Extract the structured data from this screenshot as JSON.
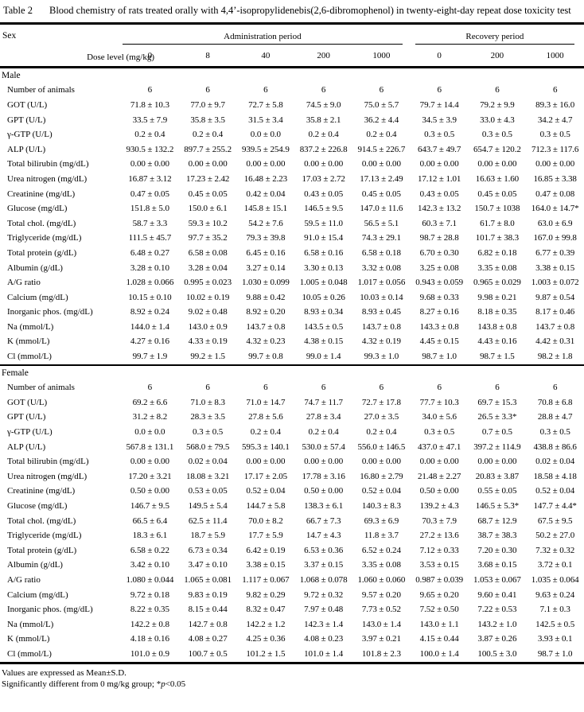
{
  "title": {
    "label": "Table 2",
    "text": "Blood chemistry of rats treated orally with 4,4’-isopropylidenebis(2,6-dibromophenol) in twenty-eight-day repeat dose toxicity test"
  },
  "table": {
    "header": {
      "sex_label": "Sex",
      "dose_level_label": "Dose level (mg/kg)",
      "administration_label": "Administration period",
      "recovery_label": "Recovery period",
      "doses": [
        "0",
        "8",
        "40",
        "200",
        "1000",
        "0",
        "200",
        "1000"
      ]
    },
    "sections": [
      {
        "name": "Male",
        "rows": [
          {
            "label": "Number of animals",
            "values": [
              "6",
              "6",
              "6",
              "6",
              "6",
              "6",
              "6",
              "6"
            ]
          },
          {
            "label": "GOT (U/L)",
            "values": [
              "71.8 ± 10.3",
              "77.0 ± 9.7",
              "72.7 ± 5.8",
              "74.5 ± 9.0",
              "75.0 ± 5.7",
              "79.7 ± 14.4",
              "79.2 ± 9.9",
              "89.3 ± 16.0"
            ]
          },
          {
            "label": "GPT (U/L)",
            "values": [
              "33.5 ± 7.9",
              "35.8 ± 3.5",
              "31.5 ± 3.4",
              "35.8 ± 2.1",
              "36.2 ± 4.4",
              "34.5 ± 3.9",
              "33.0 ± 4.3",
              "34.2 ± 4.7"
            ]
          },
          {
            "label": "γ-GTP (U/L)",
            "values": [
              "0.2 ± 0.4",
              "0.2 ± 0.4",
              "0.0 ± 0.0",
              "0.2 ± 0.4",
              "0.2 ± 0.4",
              "0.3 ± 0.5",
              "0.3 ± 0.5",
              "0.3 ± 0.5"
            ]
          },
          {
            "label": "ALP (U/L)",
            "values": [
              "930.5 ± 132.2",
              "897.7 ± 255.2",
              "939.5 ± 254.9",
              "837.2 ± 226.8",
              "914.5 ± 226.7",
              "643.7 ± 49.7",
              "654.7 ± 120.2",
              "712.3 ± 117.6"
            ]
          },
          {
            "label": "Total bilirubin (mg/dL)",
            "values": [
              "0.00 ± 0.00",
              "0.00 ± 0.00",
              "0.00 ± 0.00",
              "0.00 ± 0.00",
              "0.00 ± 0.00",
              "0.00 ± 0.00",
              "0.00 ± 0.00",
              "0.00 ± 0.00"
            ]
          },
          {
            "label": "Urea nitrogen (mg/dL)",
            "values": [
              "16.87 ± 3.12",
              "17.23 ± 2.42",
              "16.48 ± 2.23",
              "17.03 ± 2.72",
              "17.13 ± 2.49",
              "17.12 ± 1.01",
              "16.63 ± 1.60",
              "16.85 ± 3.38"
            ]
          },
          {
            "label": "Creatinine (mg/dL)",
            "values": [
              "0.47 ± 0.05",
              "0.45 ± 0.05",
              "0.42 ± 0.04",
              "0.43 ± 0.05",
              "0.45 ± 0.05",
              "0.43 ± 0.05",
              "0.45 ± 0.05",
              "0.47 ± 0.08"
            ]
          },
          {
            "label": "Glucose (mg/dL)",
            "values": [
              "151.8 ± 5.0",
              "150.0 ± 6.1",
              "145.8 ± 15.1",
              "146.5 ± 9.5",
              "147.0 ± 11.6",
              "142.3 ± 13.2",
              "150.7 ± 1038",
              "164.0 ± 14.7*"
            ]
          },
          {
            "label": "Total chol. (mg/dL)",
            "values": [
              "58.7 ± 3.3",
              "59.3 ± 10.2",
              "54.2 ± 7.6",
              "59.5 ± 11.0",
              "56.5 ± 5.1",
              "60.3 ± 7.1",
              "61.7 ± 8.0",
              "63.0 ± 6.9"
            ]
          },
          {
            "label": "Triglyceride (mg/dL)",
            "values": [
              "111.5 ± 45.7",
              "97.7 ± 35.2",
              "79.3 ± 39.8",
              "91.0 ± 15.4",
              "74.3 ± 29.1",
              "98.7 ± 28.8",
              "101.7 ± 38.3",
              "167.0 ± 99.8"
            ]
          },
          {
            "label": "Total protein (g/dL)",
            "values": [
              "6.48 ± 0.27",
              "6.58 ± 0.08",
              "6.45 ± 0.16",
              "6.58 ± 0.16",
              "6.58 ± 0.18",
              "6.70 ± 0.30",
              "6.82 ± 0.18",
              "6.77 ± 0.39"
            ]
          },
          {
            "label": "Albumin (g/dL)",
            "values": [
              "3.28 ± 0.10",
              "3.28 ± 0.04",
              "3.27 ± 0.14",
              "3.30 ± 0.13",
              "3.32 ± 0.08",
              "3.25 ± 0.08",
              "3.35 ± 0.08",
              "3.38 ± 0.15"
            ]
          },
          {
            "label": "A/G ratio",
            "values": [
              "1.028 ± 0.066",
              "0.995 ± 0.023",
              "1.030 ± 0.099",
              "1.005 ± 0.048",
              "1.017 ± 0.056",
              "0.943 ± 0.059",
              "0.965 ± 0.029",
              "1.003 ± 0.072"
            ]
          },
          {
            "label": "Calcium (mg/dL)",
            "values": [
              "10.15 ± 0.10",
              "10.02 ± 0.19",
              "9.88 ± 0.42",
              "10.05 ± 0.26",
              "10.03 ± 0.14",
              "9.68 ± 0.33",
              "9.98 ± 0.21",
              "9.87 ± 0.54"
            ]
          },
          {
            "label": "Inorganic phos. (mg/dL)",
            "values": [
              "8.92 ± 0.24",
              "9.02 ± 0.48",
              "8.92 ± 0.20",
              "8.93 ± 0.34",
              "8.93 ± 0.45",
              "8.27 ± 0.16",
              "8.18 ± 0.35",
              "8.17 ± 0.46"
            ]
          },
          {
            "label": "Na (mmol/L)",
            "values": [
              "144.0 ± 1.4",
              "143.0 ± 0.9",
              "143.7 ± 0.8",
              "143.5 ± 0.5",
              "143.7 ± 0.8",
              "143.3 ± 0.8",
              "143.8 ± 0.8",
              "143.7 ± 0.8"
            ]
          },
          {
            "label": "K (mmol/L)",
            "values": [
              "4.27 ± 0.16",
              "4.33 ± 0.19",
              "4.32 ± 0.23",
              "4.38 ± 0.15",
              "4.32 ± 0.19",
              "4.45 ± 0.15",
              "4.43 ± 0.16",
              "4.42 ± 0.31"
            ]
          },
          {
            "label": "Cl (mmol/L)",
            "values": [
              "99.7 ± 1.9",
              "99.2 ± 1.5",
              "99.7 ± 0.8",
              "99.0 ± 1.4",
              "99.3 ± 1.0",
              "98.7 ± 1.0",
              "98.7 ± 1.5",
              "98.2 ± 1.8"
            ]
          }
        ]
      },
      {
        "name": "Female",
        "rows": [
          {
            "label": "Number of animals",
            "values": [
              "6",
              "6",
              "6",
              "6",
              "6",
              "6",
              "6",
              "6"
            ]
          },
          {
            "label": "GOT (U/L)",
            "values": [
              "69.2 ± 6.6",
              "71.0 ± 8.3",
              "71.0 ± 14.7",
              "74.7 ± 11.7",
              "72.7 ± 17.8",
              "77.7 ± 10.3",
              "69.7 ± 15.3",
              "70.8 ± 6.8"
            ]
          },
          {
            "label": "GPT (U/L)",
            "values": [
              "31.2 ± 8.2",
              "28.3 ± 3.5",
              "27.8 ± 5.6",
              "27.8 ± 3.4",
              "27.0 ± 3.5",
              "34.0 ± 5.6",
              "26.5 ± 3.3*",
              "28.8 ± 4.7"
            ]
          },
          {
            "label": "γ-GTP (U/L)",
            "values": [
              "0.0 ± 0.0",
              "0.3 ± 0.5",
              "0.2 ± 0.4",
              "0.2 ± 0.4",
              "0.2 ± 0.4",
              "0.3 ± 0.5",
              "0.7 ± 0.5",
              "0.3 ± 0.5"
            ]
          },
          {
            "label": "ALP (U/L)",
            "values": [
              "567.8 ± 131.1",
              "568.0 ± 79.5",
              "595.3 ± 140.1",
              "530.0 ± 57.4",
              "556.0 ± 146.5",
              "437.0 ± 47.1",
              "397.2 ± 114.9",
              "438.8 ± 86.6"
            ]
          },
          {
            "label": "Total bilirubin (mg/dL)",
            "values": [
              "0.00 ± 0.00",
              "0.02 ± 0.04",
              "0.00 ± 0.00",
              "0.00 ± 0.00",
              "0.00 ± 0.00",
              "0.00 ± 0.00",
              "0.00 ± 0.00",
              "0.02 ± 0.04"
            ]
          },
          {
            "label": "Urea nitrogen (mg/dL)",
            "values": [
              "17.20 ± 3.21",
              "18.08 ± 3.21",
              "17.17 ± 2.05",
              "17.78 ± 3.16",
              "16.80 ± 2.79",
              "21.48 ± 2.27",
              "20.83 ± 3.87",
              "18.58 ± 4.18"
            ]
          },
          {
            "label": "Creatinine (mg/dL)",
            "values": [
              "0.50 ± 0.00",
              "0.53 ± 0.05",
              "0.52 ± 0.04",
              "0.50 ± 0.00",
              "0.52 ± 0.04",
              "0.50 ± 0.00",
              "0.55 ± 0.05",
              "0.52 ± 0.04"
            ]
          },
          {
            "label": "Glucose (mg/dL)",
            "values": [
              "146.7 ± 9.5",
              "149.5 ± 5.4",
              "144.7 ± 5.8",
              "138.3 ± 6.1",
              "140.3 ± 8.3",
              "139.2 ± 4.3",
              "146.5 ± 5.3*",
              "147.7 ± 4.4*"
            ]
          },
          {
            "label": "Total chol. (mg/dL)",
            "values": [
              "66.5 ± 6.4",
              "62.5 ± 11.4",
              "70.0 ± 8.2",
              "66.7 ± 7.3",
              "69.3 ± 6.9",
              "70.3 ± 7.9",
              "68.7 ± 12.9",
              "67.5 ± 9.5"
            ]
          },
          {
            "label": "Triglyceride (mg/dL)",
            "values": [
              "18.3 ± 6.1",
              "18.7 ± 5.9",
              "17.7 ± 5.9",
              "14.7 ± 4.3",
              "11.8 ± 3.7",
              "27.2 ± 13.6",
              "38.7 ± 38.3",
              "50.2 ± 27.0"
            ]
          },
          {
            "label": "Total protein (g/dL)",
            "values": [
              "6.58 ± 0.22",
              "6.73 ± 0.34",
              "6.42 ± 0.19",
              "6.53 ± 0.36",
              "6.52 ± 0.24",
              "7.12 ± 0.33",
              "7.20 ± 0.30",
              "7.32 ± 0.32"
            ]
          },
          {
            "label": "Albumin (g/dL)",
            "values": [
              "3.42 ± 0.10",
              "3.47 ± 0.10",
              "3.38 ± 0.15",
              "3.37 ± 0.15",
              "3.35 ± 0.08",
              "3.53 ± 0.15",
              "3.68 ± 0.15",
              "3.72 ± 0.1"
            ]
          },
          {
            "label": "A/G ratio",
            "values": [
              "1.080 ± 0.044",
              "1.065 ± 0.081",
              "1.117 ± 0.067",
              "1.068 ± 0.078",
              "1.060 ± 0.060",
              "0.987 ± 0.039",
              "1.053 ± 0.067",
              "1.035 ± 0.064"
            ]
          },
          {
            "label": "Calcium (mg/dL)",
            "values": [
              "9.72 ± 0.18",
              "9.83 ± 0.19",
              "9.82 ± 0.29",
              "9.72 ± 0.32",
              "9.57 ± 0.20",
              "9.65 ± 0.20",
              "9.60 ± 0.41",
              "9.63 ± 0.24"
            ]
          },
          {
            "label": "Inorganic phos. (mg/dL)",
            "values": [
              "8.22 ± 0.35",
              "8.15 ± 0.44",
              "8.32 ± 0.47",
              "7.97 ± 0.48",
              "7.73 ± 0.52",
              "7.52 ± 0.50",
              "7.22 ± 0.53",
              "7.1 ± 0.3"
            ]
          },
          {
            "label": "Na (mmol/L)",
            "values": [
              "142.2 ± 0.8",
              "142.7 ± 0.8",
              "142.2 ± 1.2",
              "142.3 ± 1.4",
              "143.0 ± 1.4",
              "143.0 ± 1.1",
              "143.2 ± 1.0",
              "142.5 ± 0.5"
            ]
          },
          {
            "label": "K (mmol/L)",
            "values": [
              "4.18 ± 0.16",
              "4.08 ± 0.27",
              "4.25 ± 0.36",
              "4.08 ± 0.23",
              "3.97 ± 0.21",
              "4.15 ± 0.44",
              "3.87 ± 0.26",
              "3.93 ± 0.1"
            ]
          },
          {
            "label": "Cl (mmol/L)",
            "values": [
              "101.0 ± 0.9",
              "100.7 ± 0.5",
              "101.2 ± 1.5",
              "101.0 ± 1.4",
              "101.8 ± 2.3",
              "100.0 ± 1.4",
              "100.5 ± 3.0",
              "98.7 ± 1.0"
            ]
          }
        ]
      }
    ]
  },
  "footnotes": {
    "line1": "Values are expressed as Mean±S.D.",
    "line2_prefix": "Significantly different from 0 mg/kg group; *",
    "line2_italic": "p",
    "line2_suffix": "<0.05"
  }
}
